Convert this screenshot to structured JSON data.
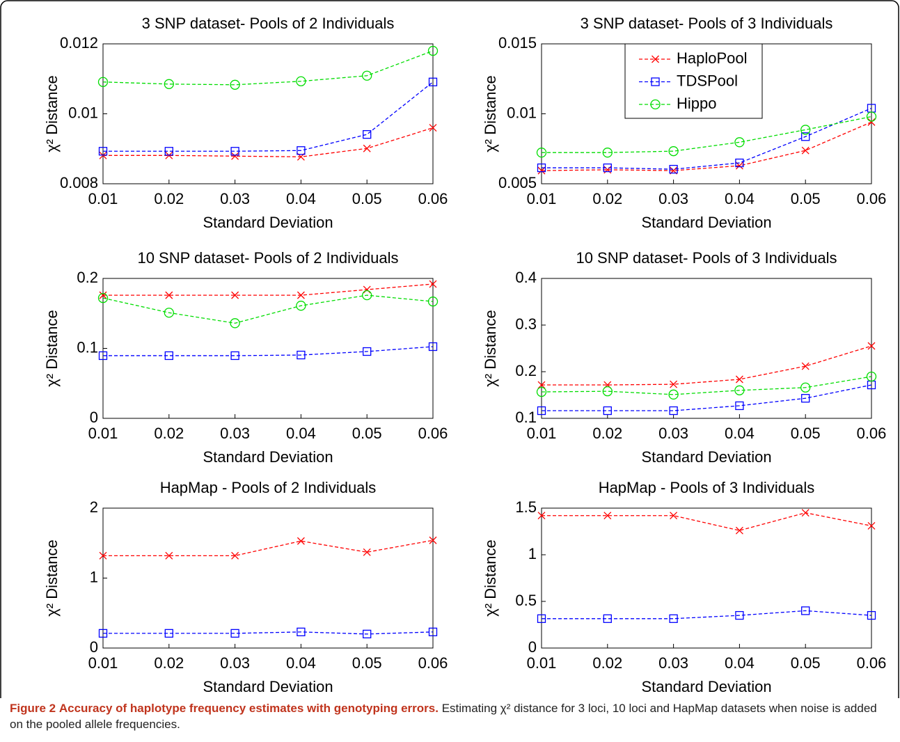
{
  "chart_data": [
    {
      "type": "line",
      "title": "3 SNP dataset- Pools of 2 Individuals",
      "xlabel": "Standard Deviation",
      "ylabel": "χ² Distance",
      "x": [
        0.01,
        0.02,
        0.03,
        0.04,
        0.05,
        0.06
      ],
      "xlim": [
        0.01,
        0.06
      ],
      "xticks": [
        0.01,
        0.02,
        0.03,
        0.04,
        0.05,
        0.06
      ],
      "ylim": [
        0.008,
        0.012
      ],
      "yticks": [
        0.008,
        0.01,
        0.012
      ],
      "legend": false,
      "series": [
        {
          "name": "HaploPool",
          "color": "#ff0000",
          "marker": "x",
          "values": [
            0.00881,
            0.00881,
            0.00879,
            0.00877,
            0.00901,
            0.0096
          ]
        },
        {
          "name": "TDSPool",
          "color": "#0000ff",
          "marker": "square",
          "values": [
            0.00893,
            0.00893,
            0.00893,
            0.00895,
            0.00941,
            0.01091
          ]
        },
        {
          "name": "Hippo",
          "color": "#00dd00",
          "marker": "circle",
          "values": [
            0.01091,
            0.01085,
            0.01083,
            0.01093,
            0.01109,
            0.0118
          ]
        }
      ]
    },
    {
      "type": "line",
      "title": "3 SNP dataset- Pools of 3 Individuals",
      "xlabel": "Standard Deviation",
      "ylabel": "χ² Distance",
      "x": [
        0.01,
        0.02,
        0.03,
        0.04,
        0.05,
        0.06
      ],
      "xlim": [
        0.01,
        0.06
      ],
      "xticks": [
        0.01,
        0.02,
        0.03,
        0.04,
        0.05,
        0.06
      ],
      "ylim": [
        0.005,
        0.015
      ],
      "yticks": [
        0.005,
        0.01,
        0.015
      ],
      "legend": true,
      "series": [
        {
          "name": "HaploPool",
          "color": "#ff0000",
          "marker": "x",
          "values": [
            0.00594,
            0.006,
            0.00594,
            0.00629,
            0.00738,
            0.00941
          ]
        },
        {
          "name": "TDSPool",
          "color": "#0000ff",
          "marker": "square",
          "values": [
            0.00614,
            0.00614,
            0.00604,
            0.00649,
            0.00837,
            0.0104
          ]
        },
        {
          "name": "Hippo",
          "color": "#00dd00",
          "marker": "circle",
          "values": [
            0.00723,
            0.00723,
            0.00733,
            0.00797,
            0.00886,
            0.0098
          ]
        }
      ]
    },
    {
      "type": "line",
      "title": "10 SNP dataset- Pools of 2 Individuals",
      "xlabel": "Standard Deviation",
      "ylabel": "χ² Distance",
      "x": [
        0.01,
        0.02,
        0.03,
        0.04,
        0.05,
        0.06
      ],
      "xlim": [
        0.01,
        0.06
      ],
      "xticks": [
        0.01,
        0.02,
        0.03,
        0.04,
        0.05,
        0.06
      ],
      "ylim": [
        0,
        0.2
      ],
      "yticks": [
        0,
        0.1,
        0.2
      ],
      "legend": false,
      "series": [
        {
          "name": "HaploPool",
          "color": "#ff0000",
          "marker": "x",
          "values": [
            0.176,
            0.176,
            0.176,
            0.176,
            0.184,
            0.192
          ]
        },
        {
          "name": "TDSPool",
          "color": "#0000ff",
          "marker": "square",
          "values": [
            0.0896,
            0.0896,
            0.0896,
            0.0905,
            0.0955,
            0.1025
          ]
        },
        {
          "name": "Hippo",
          "color": "#00dd00",
          "marker": "circle",
          "values": [
            0.172,
            0.151,
            0.136,
            0.161,
            0.176,
            0.167
          ]
        }
      ]
    },
    {
      "type": "line",
      "title": "10 SNP dataset- Pools of 3 Individuals",
      "xlabel": "Standard Deviation",
      "ylabel": "χ² Distance",
      "x": [
        0.01,
        0.02,
        0.03,
        0.04,
        0.05,
        0.06
      ],
      "xlim": [
        0.01,
        0.06
      ],
      "xticks": [
        0.01,
        0.02,
        0.03,
        0.04,
        0.05,
        0.06
      ],
      "ylim": [
        0.1,
        0.4
      ],
      "yticks": [
        0.1,
        0.2,
        0.3,
        0.4
      ],
      "legend": false,
      "series": [
        {
          "name": "HaploPool",
          "color": "#ff0000",
          "marker": "x",
          "values": [
            0.1716,
            0.1716,
            0.173,
            0.1836,
            0.2119,
            0.2552
          ]
        },
        {
          "name": "TDSPool",
          "color": "#0000ff",
          "marker": "square",
          "values": [
            0.1164,
            0.1164,
            0.1164,
            0.127,
            0.143,
            0.1716
          ]
        },
        {
          "name": "Hippo",
          "color": "#00dd00",
          "marker": "circle",
          "values": [
            0.1567,
            0.158,
            0.151,
            0.16,
            0.166,
            0.1896
          ]
        }
      ]
    },
    {
      "type": "line",
      "title": "HapMap - Pools of 2 Individuals",
      "xlabel": "Standard Deviation",
      "ylabel": "χ² Distance",
      "x": [
        0.01,
        0.02,
        0.03,
        0.04,
        0.05,
        0.06
      ],
      "xlim": [
        0.01,
        0.06
      ],
      "xticks": [
        0.01,
        0.02,
        0.03,
        0.04,
        0.05,
        0.06
      ],
      "ylim": [
        0,
        2
      ],
      "yticks": [
        0,
        1,
        2
      ],
      "legend": false,
      "series": [
        {
          "name": "HaploPool",
          "color": "#ff0000",
          "marker": "x",
          "values": [
            1.32,
            1.32,
            1.32,
            1.53,
            1.37,
            1.54
          ]
        },
        {
          "name": "TDSPool",
          "color": "#0000ff",
          "marker": "square",
          "values": [
            0.21,
            0.21,
            0.21,
            0.23,
            0.2,
            0.23
          ]
        }
      ]
    },
    {
      "type": "line",
      "title": "HapMap - Pools of 3 Individuals",
      "xlabel": "Standard Deviation",
      "ylabel": "χ² Distance",
      "x": [
        0.01,
        0.02,
        0.03,
        0.04,
        0.05,
        0.06
      ],
      "xlim": [
        0.01,
        0.06
      ],
      "xticks": [
        0.01,
        0.02,
        0.03,
        0.04,
        0.05,
        0.06
      ],
      "ylim": [
        0,
        1.5
      ],
      "yticks": [
        0,
        0.5,
        1,
        1.5
      ],
      "legend": false,
      "series": [
        {
          "name": "HaploPool",
          "color": "#ff0000",
          "marker": "x",
          "values": [
            1.42,
            1.42,
            1.42,
            1.26,
            1.45,
            1.31
          ]
        },
        {
          "name": "TDSPool",
          "color": "#0000ff",
          "marker": "square",
          "values": [
            0.315,
            0.315,
            0.315,
            0.35,
            0.4,
            0.35
          ]
        }
      ]
    }
  ],
  "caption": {
    "label": "Figure 2",
    "title": "Accuracy of haplotype frequency estimates with genotyping errors.",
    "text": "Estimating χ² distance for 3 loci, 10 loci and HapMap datasets when noise is added on the pooled allele frequencies."
  }
}
